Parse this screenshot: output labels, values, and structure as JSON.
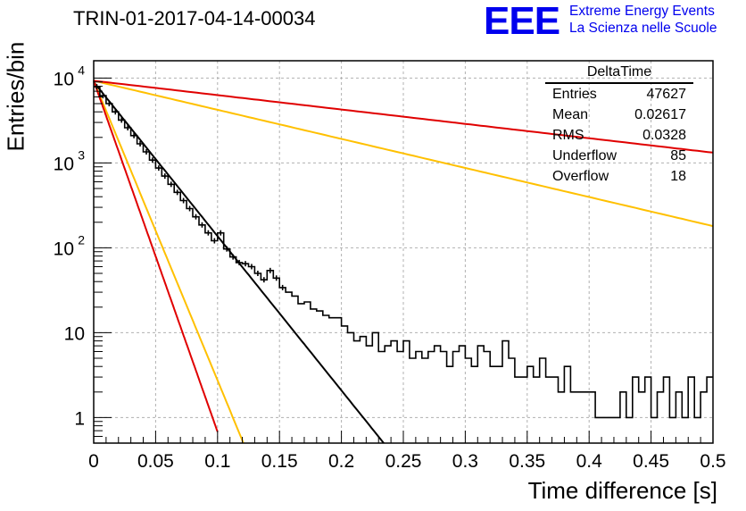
{
  "chart_data": {
    "type": "line",
    "title": "TRIN-01-2017-04-14-00034",
    "xlabel": "Time difference [s]",
    "ylabel": "Entries/bin",
    "xlim": [
      0,
      0.5
    ],
    "ylim": [
      0.5,
      16000
    ],
    "yscale": "log",
    "grid": true,
    "x_ticks": [
      "0",
      "0.05",
      "0.1",
      "0.15",
      "0.2",
      "0.25",
      "0.3",
      "0.35",
      "0.4",
      "0.45",
      "0.5"
    ],
    "y_ticks": [
      {
        "value": 1,
        "label": "1"
      },
      {
        "value": 10,
        "label": "10"
      },
      {
        "value": 100,
        "label": "10",
        "exp": "2"
      },
      {
        "value": 1000,
        "label": "10",
        "exp": "3"
      },
      {
        "value": 10000,
        "label": "10",
        "exp": "4"
      }
    ],
    "histogram": {
      "bin_width": 0.005,
      "color": "#000000",
      "values": [
        7900,
        6200,
        5000,
        4000,
        3200,
        2600,
        2100,
        1680,
        1350,
        1080,
        870,
        700,
        560,
        450,
        360,
        290,
        232,
        186,
        150,
        121,
        150,
        97,
        78,
        67,
        65,
        60,
        50,
        42,
        54,
        44,
        34,
        30,
        27,
        22,
        23,
        19,
        18,
        16,
        15,
        15,
        12,
        10,
        8,
        9,
        7,
        10,
        6,
        7,
        8,
        6,
        8,
        5,
        6,
        5,
        6,
        7,
        6,
        4,
        6,
        7,
        5,
        4,
        7,
        6,
        4,
        4,
        8,
        5,
        3,
        3,
        4,
        3,
        5,
        3,
        3,
        2,
        4,
        2,
        2,
        2,
        2,
        1,
        1,
        1,
        1,
        2,
        1,
        3,
        2,
        3,
        1,
        2,
        3,
        1,
        2,
        1,
        3,
        1,
        2,
        3
      ]
    },
    "fits": [
      {
        "color": "#000000",
        "y0": 9000,
        "tau": 0.0239,
        "x_end": 0.245
      },
      {
        "color": "#ffc000",
        "y0": 9300,
        "tau": 0.0123,
        "x_end": 0.128
      },
      {
        "color": "#e00000",
        "y0": 9300,
        "tau": 0.0105,
        "x_end": 0.1
      },
      {
        "color": "#ffc000",
        "y0": 9300,
        "tau": 0.1268,
        "x_end": 0.5
      },
      {
        "color": "#e00000",
        "y0": 9300,
        "tau": 0.2564,
        "x_end": 0.5
      }
    ],
    "stats": {
      "title": "DeltaTime",
      "rows": [
        {
          "label": "Entries",
          "value": "47627"
        },
        {
          "label": "Mean",
          "value": "0.02617"
        },
        {
          "label": "RMS",
          "value": "0.0328"
        },
        {
          "label": "Underflow",
          "value": "85"
        },
        {
          "label": "Overflow",
          "value": "18"
        }
      ]
    }
  },
  "logo": {
    "mark": "EEE",
    "line1": "Extreme Energy Events",
    "line2": "La Scienza nelle Scuole",
    "color": "#0000ee"
  }
}
